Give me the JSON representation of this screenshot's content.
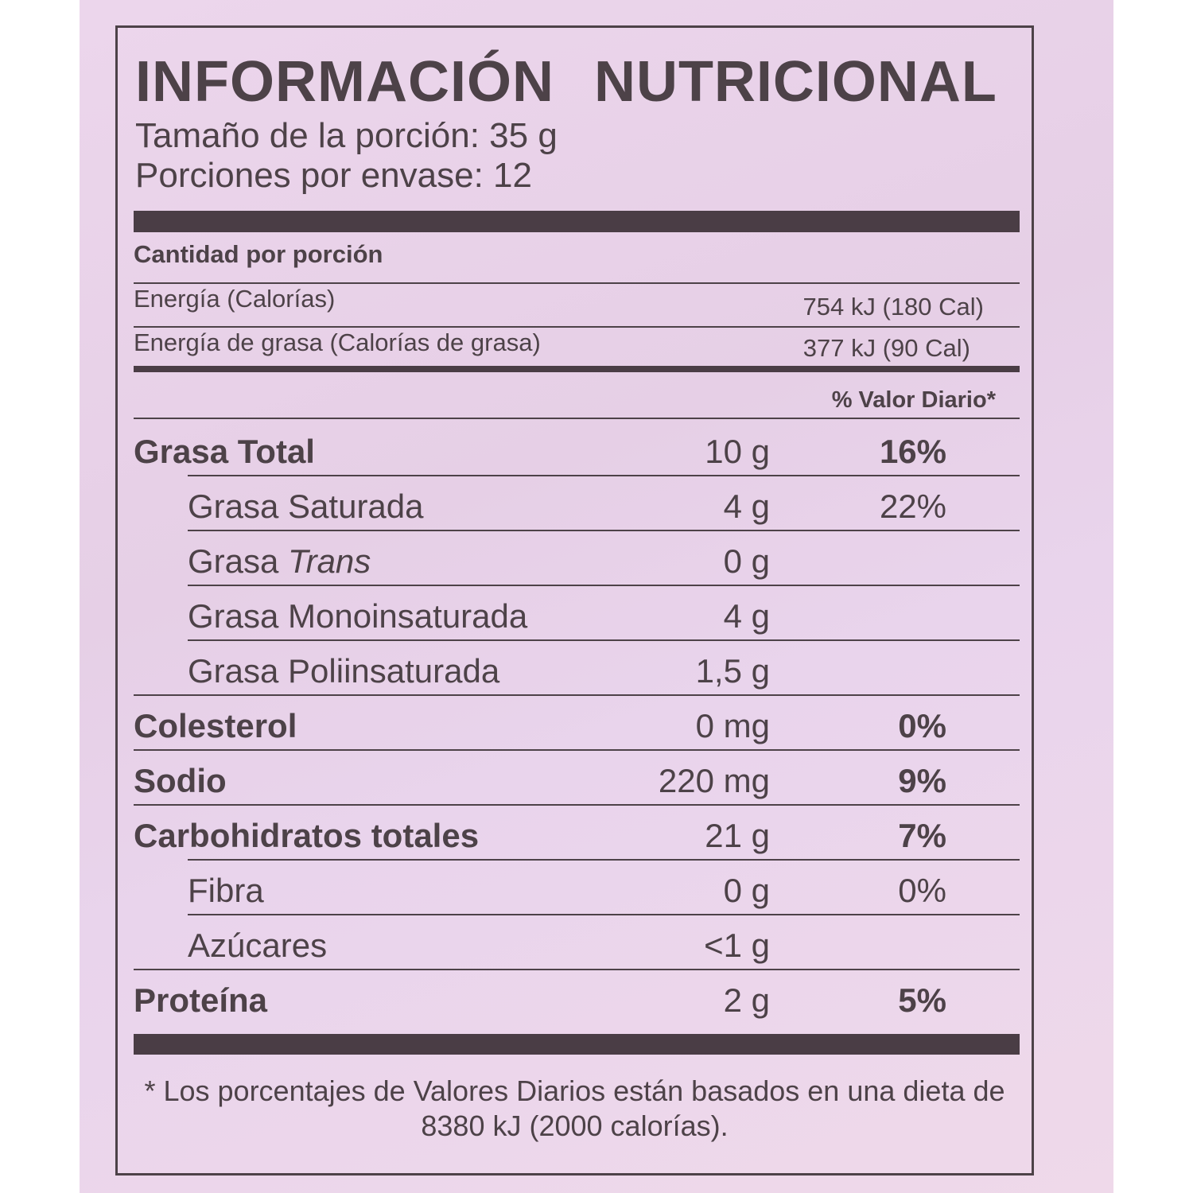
{
  "label": {
    "title": [
      "INFORMACIÓN",
      "NUTRICIONAL"
    ],
    "serving_size": "Tamaño de la porción: 35 g",
    "servings_per_container": "Porciones por envase: 12",
    "amount_per_serving": "Cantidad por porción",
    "energy": {
      "label": "Energía (Calorías)",
      "value": "754 kJ (180 Cal)"
    },
    "energy_fat": {
      "label": "Energía de grasa (Calorías de grasa)",
      "value": "377 kJ (90 Cal)"
    },
    "dv_header": "% Valor Diario*",
    "rows": [
      {
        "label": "Grasa Total",
        "amount": "10 g",
        "dv": "16%",
        "bold": true,
        "indent": false
      },
      {
        "label": "Grasa Saturada",
        "amount": "4 g",
        "dv": "22%",
        "bold": false,
        "indent": true
      },
      {
        "label": "Grasa ",
        "label_italic": "Trans",
        "amount": "0 g",
        "dv": "",
        "bold": false,
        "indent": true
      },
      {
        "label": "Grasa Monoinsaturada",
        "amount": "4 g",
        "dv": "",
        "bold": false,
        "indent": true
      },
      {
        "label": "Grasa Poliinsaturada",
        "amount": "1,5 g",
        "dv": "",
        "bold": false,
        "indent": true
      },
      {
        "label": "Colesterol",
        "amount": "0 mg",
        "dv": "0%",
        "bold": true,
        "indent": false
      },
      {
        "label": "Sodio",
        "amount": "220 mg",
        "dv": "9%",
        "bold": true,
        "indent": false
      },
      {
        "label": "Carbohidratos totales",
        "amount": "21 g",
        "dv": "7%",
        "bold": true,
        "indent": false
      },
      {
        "label": "Fibra",
        "amount": "0 g",
        "dv": "0%",
        "bold": false,
        "indent": true
      },
      {
        "label": "Azúcares",
        "amount": "<1 g",
        "dv": "",
        "bold": false,
        "indent": true
      },
      {
        "label": "Proteína",
        "amount": "2 g",
        "dv": "5%",
        "bold": true,
        "indent": false
      }
    ],
    "footnote": "* Los porcentajes de Valores Diarios están basados en una dieta de 8380 kJ (2000 calorías)."
  },
  "colors": {
    "background": "#e9d3e9",
    "ink": "#4d4248"
  }
}
